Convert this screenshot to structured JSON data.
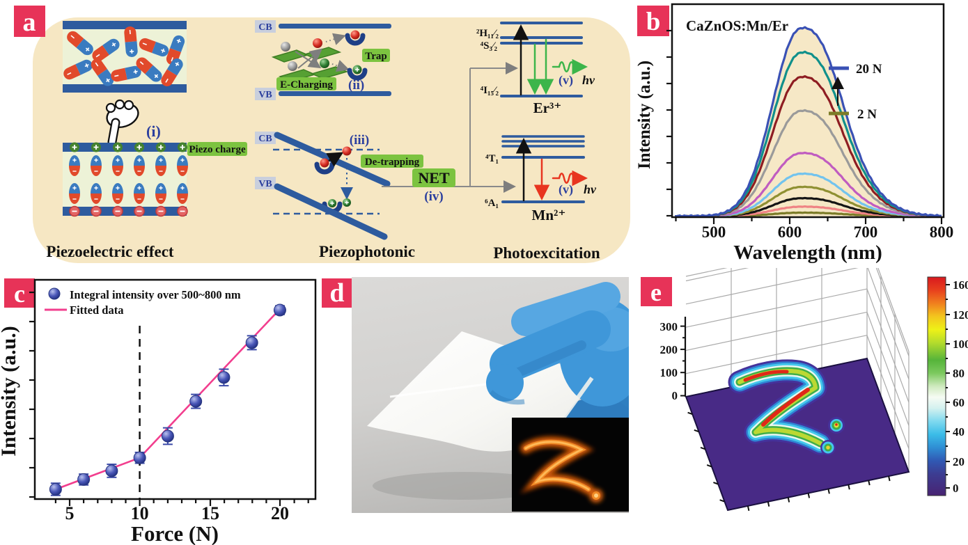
{
  "colors": {
    "badge": "#e73358",
    "panel_bg": "#f6e7c3",
    "band_blue": "#2e5b9e",
    "label_green": "#7cc340",
    "text_blue": "#2b3f9e",
    "spectra_fill": "#f6e8c6",
    "fit_pink": "#f23e8e",
    "point_blue": "#3b4aa8",
    "floor_purple": "#482a86"
  },
  "panel_a": {
    "badge": "a",
    "cb": "CB",
    "vb": "VB",
    "trap": "Trap",
    "e_charging": "E-Charging",
    "piezo_charge": "Piezo charge",
    "de_trapping": "De-trapping",
    "net": "NET",
    "step_i": "(i)",
    "step_ii": "(ii)",
    "step_iii": "(iii)",
    "step_iv": "(iv)",
    "step_v": "(v)",
    "hv": "hν",
    "er": {
      "h11": "²H₁₁⁄₂",
      "s32": "⁴S₃⁄₂",
      "i152": "⁴I₁₅⁄₂",
      "ion": "Er³⁺"
    },
    "mn": {
      "t1": "⁴T₁",
      "a1": "⁶A₁",
      "ion": "Mn²⁺"
    },
    "captions": {
      "left": "Piezoelectric effect",
      "mid": "Piezophotonic",
      "right": "Photoexcitation"
    }
  },
  "panel_b": {
    "badge": "b",
    "title": "CaZnOS:Mn/Er",
    "xlabel": "Wavelength (nm)",
    "ylabel": "Intensity (a.u.)",
    "xticks": [
      "500",
      "600",
      "700",
      "800"
    ],
    "legend": {
      "top": "20 N",
      "bottom": "2 N"
    }
  },
  "panel_c": {
    "badge": "c",
    "legend_points": "Integral intensity over 500~800 nm",
    "legend_fit": "Fitted data",
    "xlabel": "Force (N)",
    "ylabel": "Intensity (a.u.)",
    "xticks": [
      "5",
      "10",
      "15",
      "20"
    ]
  },
  "panel_d": {
    "badge": "d"
  },
  "panel_e": {
    "badge": "e",
    "zticks": [
      "300",
      "200",
      "100",
      "0"
    ],
    "colorbar_ticks": [
      "160",
      "120",
      "100",
      "80",
      "60",
      "40",
      "20",
      "0"
    ]
  },
  "chart_data": [
    {
      "type": "line",
      "panel": "b",
      "title": "CaZnOS:Mn/Er",
      "xlabel": "Wavelength (nm)",
      "ylabel": "Intensity (a.u.)",
      "xlim": [
        450,
        800
      ],
      "xticks": [
        500,
        600,
        700,
        800
      ],
      "peak_nm": 612,
      "grid": false,
      "legend_position": "upper right",
      "note": "Mechanoluminescence spectra under forces 2-20 N; intensity in arbitrary units normalized to the 20 N peak",
      "series": [
        {
          "name": "20 N",
          "color": "#3a51b5",
          "peak": 1.0
        },
        {
          "name": "18 N",
          "color": "#10908b",
          "peak": 0.87
        },
        {
          "name": "16 N",
          "color": "#8e1d22",
          "peak": 0.74
        },
        {
          "name": "14 N",
          "color": "#9a9a9a",
          "peak": 0.56
        },
        {
          "name": "12 N",
          "color": "#c05cc0",
          "peak": 0.335
        },
        {
          "name": "10 N",
          "color": "#72c3ee",
          "peak": 0.225
        },
        {
          "name": "8 N",
          "color": "#8f9032",
          "peak": 0.155
        },
        {
          "name": "6 N",
          "color": "#141414",
          "peak": 0.095
        },
        {
          "name": "4 N",
          "color": "#ef8384",
          "peak": 0.05
        },
        {
          "name": "2 N",
          "color": "#7c7c28",
          "peak": 0.018
        }
      ]
    },
    {
      "type": "scatter",
      "panel": "c",
      "xlabel": "Force (N)",
      "ylabel": "Intensity (a.u.)",
      "xlim": [
        3,
        22
      ],
      "xticks": [
        5,
        10,
        15,
        20
      ],
      "threshold_x": 10,
      "x": [
        4,
        6,
        8,
        10,
        12,
        14,
        16,
        18,
        20
      ],
      "y": [
        0.045,
        0.09,
        0.13,
        0.19,
        0.29,
        0.45,
        0.56,
        0.72,
        0.87
      ],
      "yerr": [
        0.028,
        0.025,
        0.03,
        0.025,
        0.038,
        0.032,
        0.038,
        0.032,
        0.02
      ],
      "fit": [
        [
          4,
          0.045
        ],
        [
          10,
          0.19
        ],
        [
          20,
          0.875
        ]
      ],
      "point_color": "#3b4aa8",
      "fit_color": "#f23e8e"
    },
    {
      "type": "surface",
      "panel": "e",
      "zlim": [
        0,
        300
      ],
      "zticks": [
        0,
        100,
        200,
        300
      ],
      "colorbar": {
        "min": 0,
        "max": 160,
        "ticks": [
          0,
          20,
          40,
          60,
          80,
          100,
          120,
          160
        ]
      },
      "note": "3D mechanoluminescence intensity map of the handwritten letter Z shown in panel d inset; peak intensity ~160"
    }
  ]
}
